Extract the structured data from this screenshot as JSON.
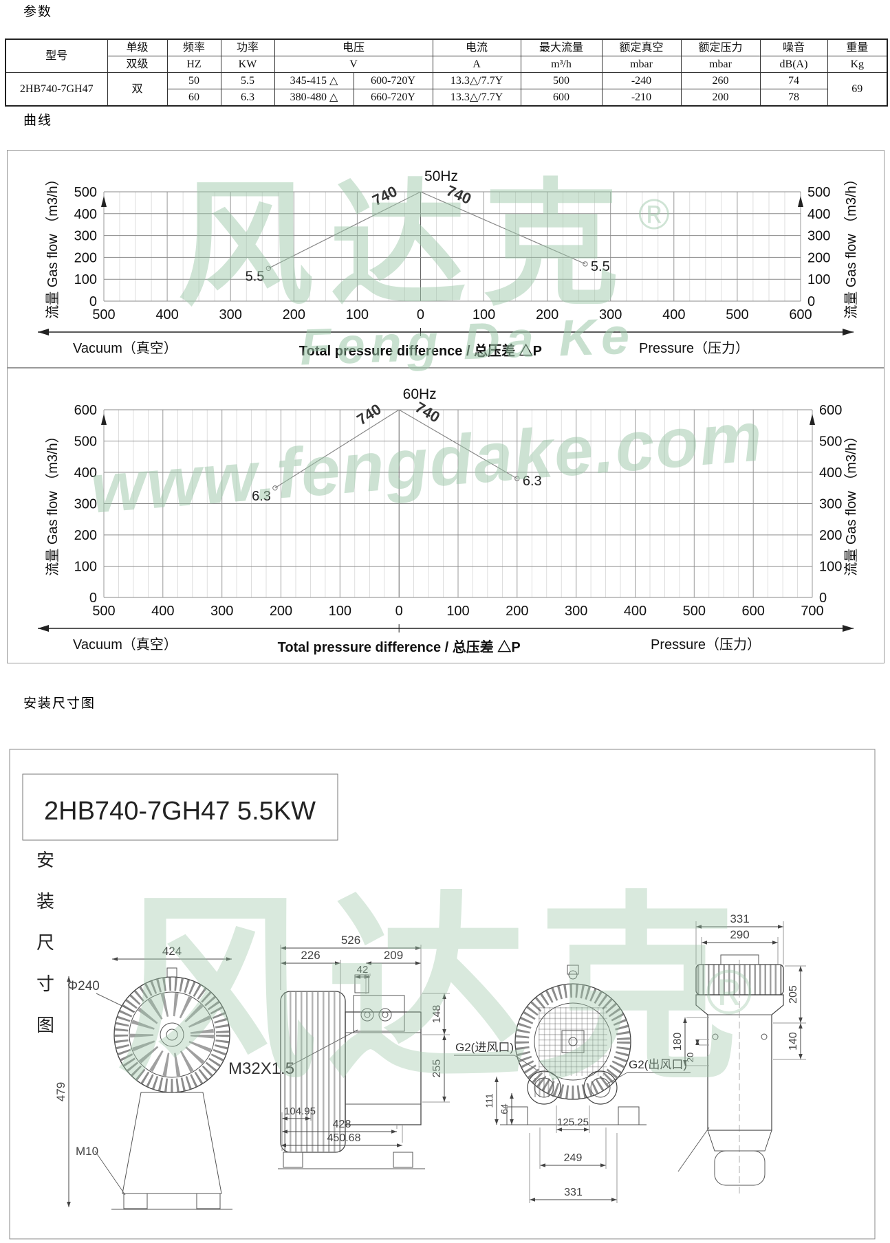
{
  "sections": {
    "params": "参数",
    "curves": "曲线",
    "install": "安装尺寸图"
  },
  "table": {
    "headers": {
      "model": "型号",
      "stage_single": "单级",
      "stage_double": "双级",
      "freq": "频率",
      "freq_unit": "HZ",
      "power": "功率",
      "power_unit": "KW",
      "voltage": "电压",
      "voltage_unit": "V",
      "current": "电流",
      "current_unit": "A",
      "max_flow": "最大流量",
      "max_flow_unit": "m³/h",
      "rated_vacuum": "额定真空",
      "rated_vacuum_unit": "mbar",
      "rated_pressure": "额定压力",
      "rated_pressure_unit": "mbar",
      "noise": "噪音",
      "noise_unit": "dB(A)",
      "weight": "重量",
      "weight_unit": "Kg"
    },
    "model": "2HB740-7GH47",
    "stage": "双",
    "weight": "69",
    "rows": [
      {
        "freq": "50",
        "power": "5.5",
        "voltage_delta": "345-415 △",
        "voltage_y": "600-720Y",
        "current": "13.3△/7.7Y",
        "max_flow": "500",
        "rated_vacuum": "-240",
        "rated_pressure": "260",
        "noise": "74"
      },
      {
        "freq": "60",
        "power": "6.3",
        "voltage_delta": "380-480 △",
        "voltage_y": "660-720Y",
        "current": "13.3△/7.7Y",
        "max_flow": "600",
        "rated_vacuum": "-210",
        "rated_pressure": "200",
        "noise": "78"
      }
    ]
  },
  "chart_data": [
    {
      "type": "line",
      "title": "50Hz",
      "ylabel": "流量 Gas flow （m3/h）",
      "xlabel_left": "Vacuum（真空）",
      "xlabel_center": "Total pressure difference / 总压差  △P",
      "xlabel_right": "Pressure（压力）",
      "xlim": [
        -500,
        600
      ],
      "ylim": [
        0,
        500
      ],
      "x_minor_step": 25,
      "grid": true,
      "x_ticks": [
        -500,
        -400,
        -300,
        -200,
        -100,
        0,
        100,
        200,
        300,
        400,
        500,
        600
      ],
      "x_tick_labels": [
        "500",
        "400",
        "300",
        "200",
        "100",
        "0",
        "100",
        "200",
        "300",
        "400",
        "500",
        "600"
      ],
      "y_ticks": [
        0,
        100,
        200,
        300,
        400,
        500
      ],
      "series": [
        {
          "name": "740",
          "label": "5.5",
          "side": "left",
          "points": [
            [
              -240,
              150
            ],
            [
              0,
              500
            ]
          ]
        },
        {
          "name": "740",
          "label": "5.5",
          "side": "right",
          "points": [
            [
              0,
              500
            ],
            [
              260,
              170
            ]
          ]
        }
      ]
    },
    {
      "type": "line",
      "title": "60Hz",
      "ylabel": "流量 Gas flow （m3/h）",
      "xlabel_left": "Vacuum（真空）",
      "xlabel_center": "Total pressure difference / 总压差  △P",
      "xlabel_right": "Pressure（压力）",
      "xlim": [
        -500,
        700
      ],
      "ylim": [
        0,
        600
      ],
      "x_minor_step": 25,
      "grid": true,
      "x_ticks": [
        -500,
        -400,
        -300,
        -200,
        -100,
        0,
        100,
        200,
        300,
        400,
        500,
        600,
        700
      ],
      "x_tick_labels": [
        "500",
        "400",
        "300",
        "200",
        "100",
        "0",
        "100",
        "200",
        "300",
        "400",
        "500",
        "600",
        "700"
      ],
      "y_ticks": [
        0,
        100,
        200,
        300,
        400,
        500,
        600
      ],
      "series": [
        {
          "name": "740",
          "label": "6.3",
          "side": "left",
          "points": [
            [
              -210,
              350
            ],
            [
              0,
              600
            ]
          ]
        },
        {
          "name": "740",
          "label": "6.3",
          "side": "right",
          "points": [
            [
              0,
              600
            ],
            [
              200,
              380
            ]
          ]
        }
      ]
    }
  ],
  "watermark": {
    "brand_cn": "风达克",
    "reg": "®",
    "brand_en": "Feng Da Ke",
    "site": "www.fengdake.com"
  },
  "drawing": {
    "frame_title": "2HB740-7GH47  5.5KW",
    "side_label_chars": [
      "安",
      "装",
      "尺",
      "寸",
      "图"
    ],
    "view_front": {
      "width": "424",
      "diameter": "Φ240",
      "height": "479",
      "foot_thread": "M10",
      "cable_gland": "M32X1.5"
    },
    "view_side": {
      "total_length": "526",
      "impeller_length": "226",
      "motor_length": "209",
      "port_offset": "42",
      "height_upper": "148",
      "height_lower": "255",
      "base_a": "104.95",
      "base_b": "428",
      "base_c": "450.68",
      "inlet_label": "G2(进风口)"
    },
    "view_front_2": {
      "outlet_label": "G2(出风口)",
      "span_a": "125.25",
      "span_b": "249",
      "span_c": "331",
      "height_a": "111",
      "height_b": "64"
    },
    "view_side_2": {
      "width_a": "331",
      "width_b": "290",
      "height_a": "205",
      "height_b": "140",
      "height_c": "180",
      "height_d": "20"
    }
  }
}
